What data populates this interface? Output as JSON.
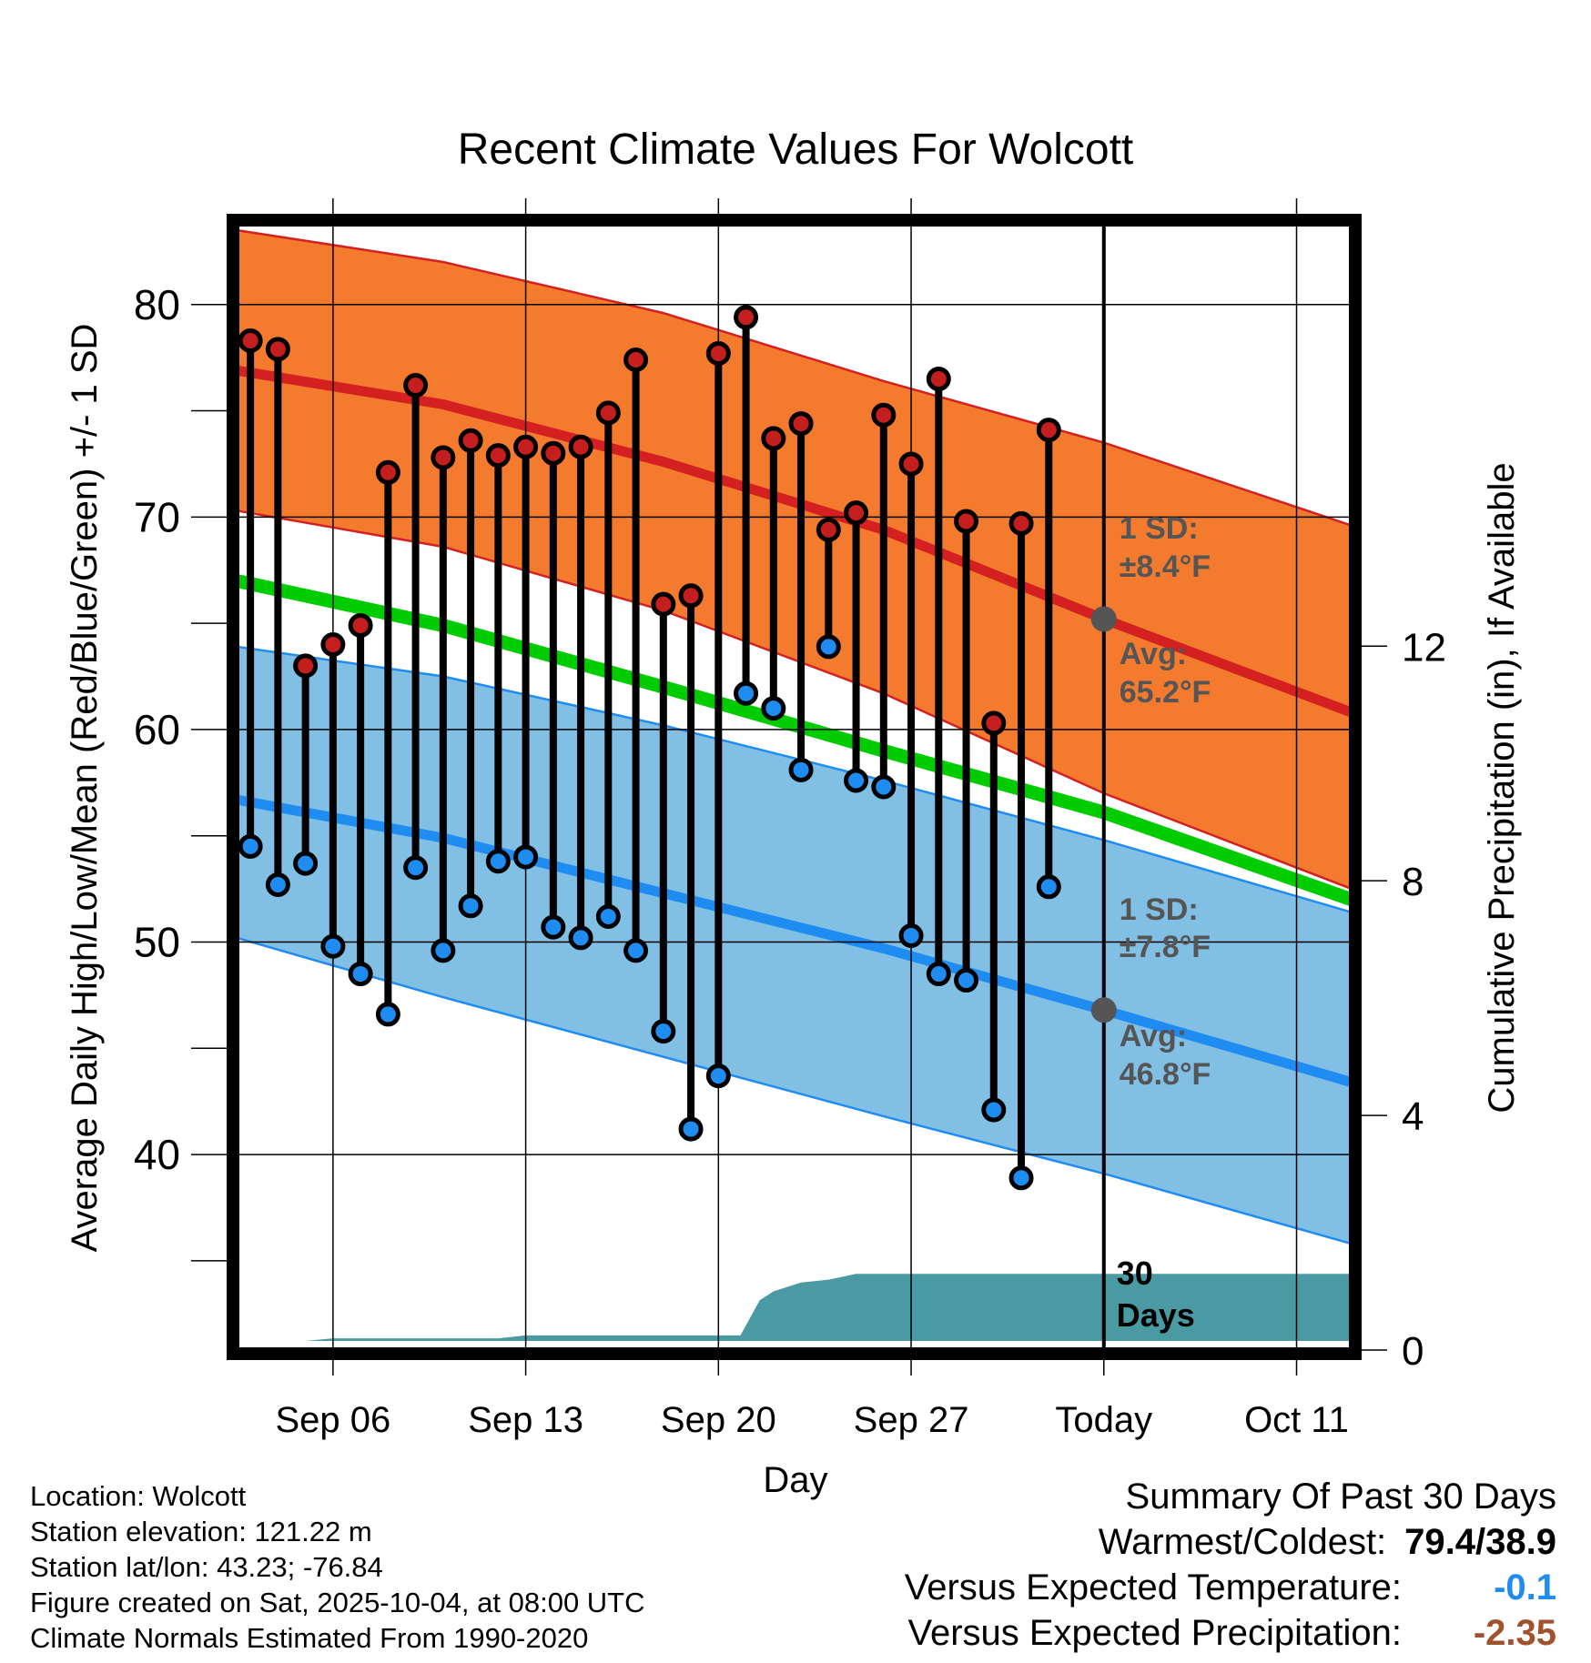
{
  "chart_data": {
    "type": "line",
    "title": "Recent Climate Values For Wolcott",
    "xlabel": "Day",
    "ylabel": "Average Daily High/Low/Mean (Red/Blue/Green) +/- 1 SD",
    "y2label": "Cumulative Precipitation (in), If Available",
    "ylim": [
      30.8,
      83.8
    ],
    "yticks": [
      40,
      50,
      60,
      70,
      80
    ],
    "y2lim": [
      0,
      19.2
    ],
    "y2ticks": [
      0,
      4,
      8,
      12
    ],
    "x_range_days": [
      0.5,
      41
    ],
    "x_day_offset_note": "day 1 = Sep 03",
    "xticks": [
      {
        "day": 4,
        "label": "Sep 06"
      },
      {
        "day": 11,
        "label": "Sep 13"
      },
      {
        "day": 18,
        "label": "Sep 20"
      },
      {
        "day": 25,
        "label": "Sep 27"
      },
      {
        "day": 32,
        "label": "Today"
      },
      {
        "day": 39,
        "label": "Oct 11"
      }
    ],
    "today_day": 32,
    "normals": {
      "days": [
        0.5,
        8,
        16,
        24,
        32,
        41
      ],
      "high_mean": [
        76.9,
        75.3,
        72.6,
        69.4,
        65.2,
        60.8
      ],
      "high_upper": [
        83.5,
        82.0,
        79.6,
        76.4,
        73.5,
        69.6
      ],
      "high_lower": [
        70.3,
        68.6,
        65.6,
        61.7,
        57.0,
        52.5
      ],
      "mid_mean": [
        67.0,
        64.9,
        62.0,
        59.0,
        56.1,
        52.0
      ],
      "low_mean": [
        56.7,
        54.9,
        52.3,
        49.7,
        46.8,
        43.4
      ],
      "low_upper": [
        63.9,
        62.5,
        60.2,
        57.6,
        54.8,
        51.4
      ],
      "low_lower": [
        50.2,
        47.4,
        44.6,
        41.8,
        39.1,
        35.8
      ]
    },
    "observed": {
      "days": [
        1,
        2,
        3,
        4,
        5,
        6,
        7,
        8,
        9,
        10,
        11,
        12,
        13,
        14,
        15,
        16,
        17,
        18,
        19,
        20,
        21,
        22,
        23,
        24,
        25,
        26,
        27,
        28,
        29,
        30,
        31
      ],
      "high": [
        78.3,
        77.9,
        63.0,
        64.0,
        64.9,
        72.1,
        76.2,
        72.8,
        73.6,
        72.9,
        73.3,
        73.0,
        73.3,
        74.9,
        77.4,
        65.9,
        66.3,
        77.7,
        79.4,
        73.7,
        74.4,
        69.4,
        70.2,
        74.8,
        72.5,
        76.5,
        69.8,
        60.3,
        69.7,
        74.1,
        null
      ],
      "low": [
        54.5,
        52.7,
        53.7,
        49.8,
        48.5,
        46.6,
        53.5,
        49.6,
        51.7,
        53.8,
        54.0,
        50.7,
        50.2,
        51.2,
        49.6,
        45.8,
        41.2,
        43.7,
        61.7,
        61.0,
        58.1,
        63.9,
        57.6,
        57.3,
        50.3,
        48.5,
        48.2,
        42.1,
        38.9,
        52.6,
        null
      ]
    },
    "precip_cumulative": {
      "days": [
        0.5,
        1.5,
        3,
        4,
        10,
        11,
        18,
        18.8,
        19.5,
        20,
        21,
        22,
        23,
        32,
        41
      ],
      "values": [
        0.0,
        0.05,
        0.05,
        0.2,
        0.2,
        0.25,
        0.25,
        0.25,
        0.85,
        1.0,
        1.15,
        1.2,
        1.3,
        1.3,
        1.3
      ]
    },
    "annotations": {
      "high_sd": {
        "line1": "1 SD:",
        "line2": "±8.4°F"
      },
      "high_avg": {
        "line1": "Avg:",
        "line2": "65.2°F",
        "value": 65.2
      },
      "low_sd": {
        "line1": "1 SD:",
        "line2": "±7.8°F"
      },
      "low_avg": {
        "line1": "Avg:",
        "line2": "46.8°F",
        "value": 46.8
      },
      "period": {
        "line1": "30",
        "line2": "Days"
      }
    },
    "colors": {
      "high_band": "#f47b2e",
      "high_line": "#d42020",
      "low_band": "#82bfe5",
      "low_line": "#1e8cf0",
      "mid_line": "#00cc00",
      "precip": "#4a9aa3",
      "high_dot": "#c41e1e",
      "low_dot": "#1e8cf0",
      "annotation": "#555555"
    }
  },
  "meta": {
    "location": "Location: Wolcott",
    "elevation": "Station elevation: 121.22 m",
    "latlon": "Station lat/lon: 43.23; -76.84",
    "created": "Figure created on Sat, 2025-10-04, at 08:00 UTC",
    "normals": "Climate Normals Estimated From 1990-2020"
  },
  "summary": {
    "title": "Summary Of Past 30 Days",
    "warm_cold_label": "Warmest/Coldest:",
    "warm_cold_value": "79.4/38.9",
    "temp_label": "Versus Expected Temperature:",
    "temp_value": "-0.1",
    "temp_color": "#1e8cf0",
    "precip_label": "Versus Expected Precipitation:",
    "precip_value": "-2.35",
    "precip_color": "#a0522d"
  }
}
